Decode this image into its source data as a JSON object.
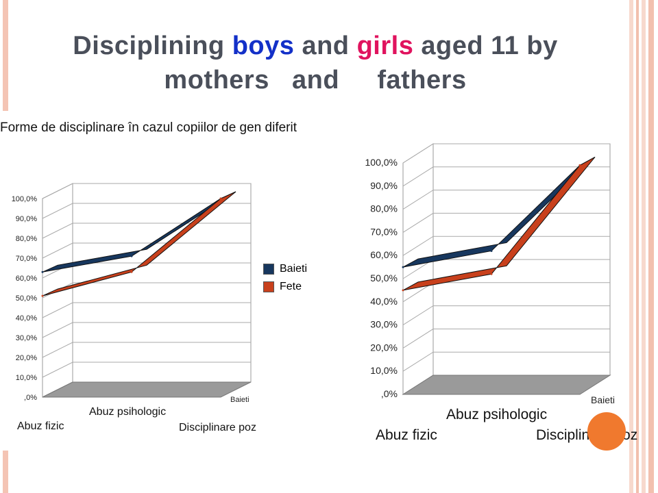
{
  "slide": {
    "title_part1": "Disciplining ",
    "title_boys": "boys",
    "title_and": " and ",
    "title_girls": "girls",
    "title_part2": " aged 11 by",
    "title_line2": "mothers   and     fathers"
  },
  "colors": {
    "baieti": "#17375e",
    "fete": "#c8401c",
    "boys_text": "#1330c8",
    "girls_text": "#e0135e",
    "accent": "#f0792e"
  },
  "chart_data": [
    {
      "type": "line",
      "title": "Forme de disciplinare în cazul copiilor de gen diferit",
      "categories": [
        "Abuz fizic",
        "Abuz psihologic",
        "Disciplinare poz"
      ],
      "depth_label": "Baieti",
      "yticks": [
        ",0%",
        "10,0%",
        "20,0%",
        "30,0%",
        "40,0%",
        "50,0%",
        "60,0%",
        "70,0%",
        "80,0%",
        "90,0%",
        "100,0%"
      ],
      "ylim": [
        0,
        100
      ],
      "legend": "right",
      "series": [
        {
          "name": "Baieti",
          "values": [
            63,
            71,
            100
          ]
        },
        {
          "name": "Fete",
          "values": [
            51,
            63,
            100
          ]
        }
      ]
    },
    {
      "type": "line",
      "title": "",
      "categories": [
        "Abuz fizic",
        "Abuz psihologic",
        "Disciplinare poz"
      ],
      "depth_label": "Baieti",
      "yticks": [
        ",0%",
        "10,0%",
        "20,0%",
        "30,0%",
        "40,0%",
        "50,0%",
        "60,0%",
        "70,0%",
        "80,0%",
        "90,0%",
        "100,0%"
      ],
      "ylim": [
        0,
        100
      ],
      "series": [
        {
          "name": "Baieti",
          "values": [
            55,
            62,
            99
          ]
        },
        {
          "name": "Fete",
          "values": [
            45,
            52,
            99
          ]
        }
      ]
    }
  ]
}
